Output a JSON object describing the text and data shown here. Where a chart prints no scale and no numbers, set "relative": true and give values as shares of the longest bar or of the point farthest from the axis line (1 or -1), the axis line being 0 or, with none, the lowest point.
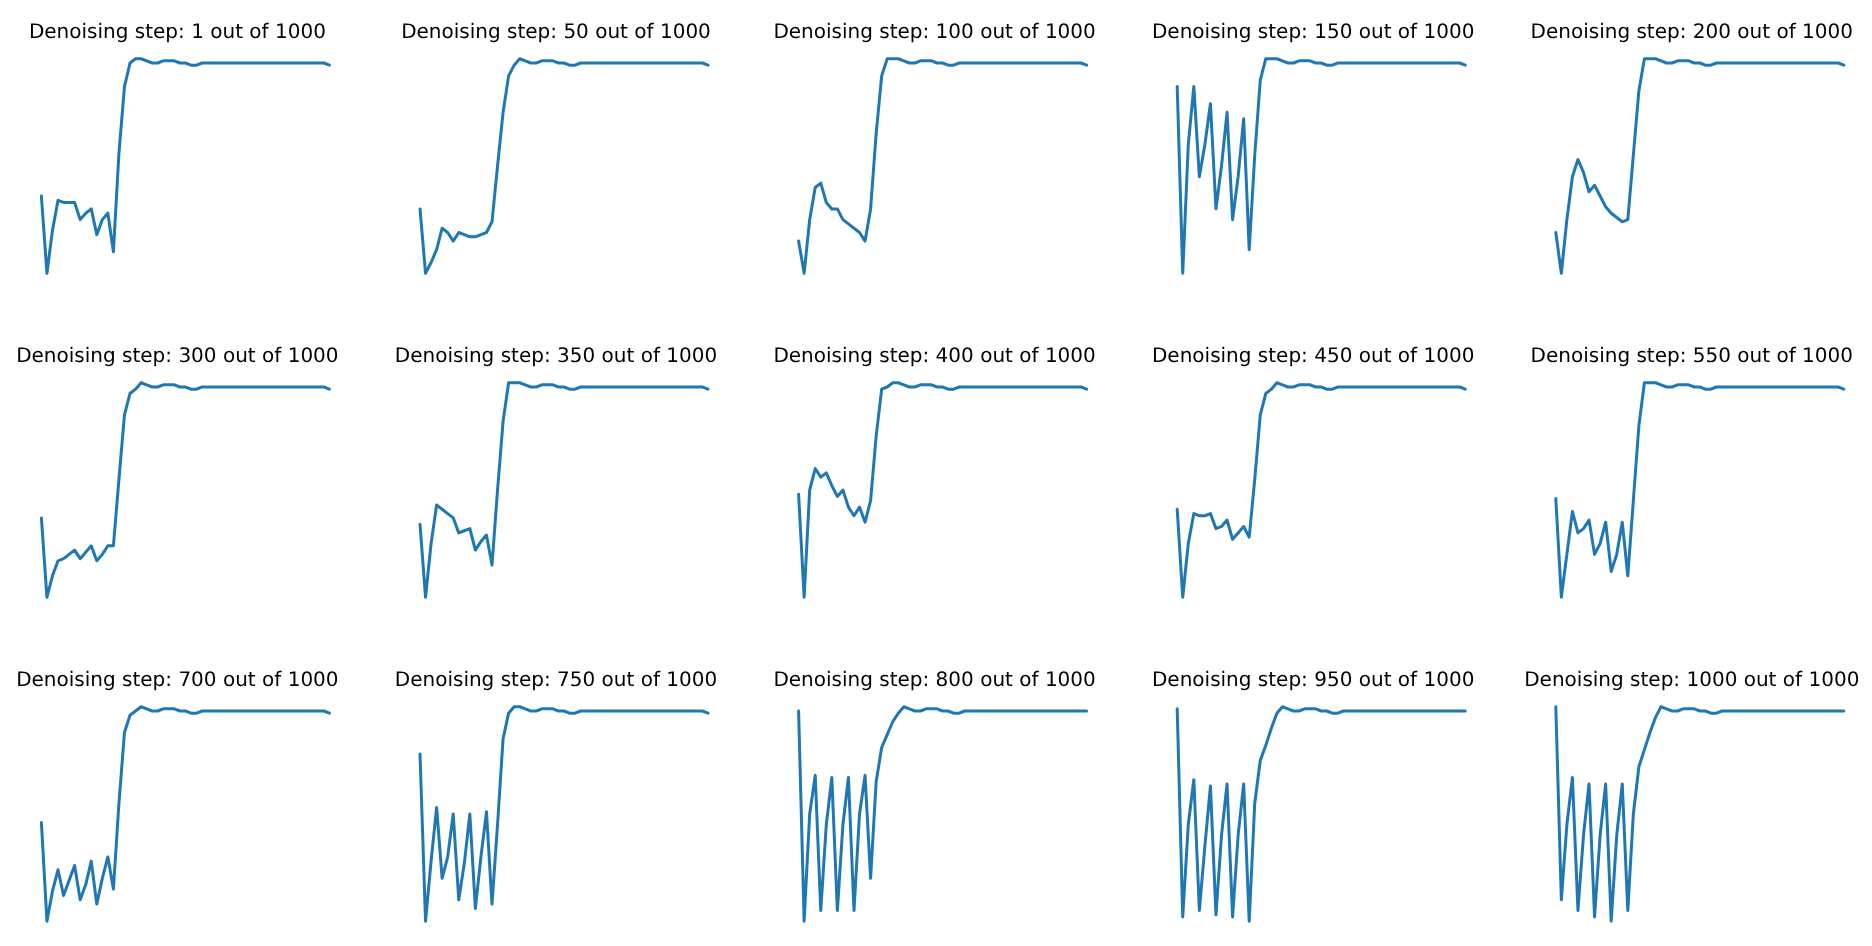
{
  "chart_data": [
    {
      "type": "line",
      "title": "Denoising step: 1 out of 1000",
      "relative": true,
      "color": "#1f77b4",
      "categories": [
        null,
        null,
        null,
        null,
        null,
        null,
        null,
        null,
        null,
        null,
        null,
        null,
        null,
        null,
        null,
        null,
        null,
        null,
        null,
        null,
        null,
        null,
        null,
        null,
        null,
        null,
        null,
        null,
        null,
        null,
        null,
        null,
        null,
        null,
        null,
        null,
        null,
        null,
        null,
        null,
        null,
        null,
        null,
        null,
        null,
        null,
        null,
        null,
        null,
        null,
        null,
        null,
        null
      ],
      "values": [
        0.36,
        0,
        0.2,
        0.34,
        0.33,
        0.33,
        0.33,
        0.25,
        0.28,
        0.3,
        0.18,
        0.25,
        0.28,
        0.1,
        0.56,
        0.87,
        0.98,
        1,
        1,
        0.99,
        0.98,
        0.98,
        0.99,
        0.99,
        0.99,
        0.98,
        0.98,
        0.97,
        0.97,
        0.98,
        0.98,
        0.98,
        0.98,
        0.98,
        0.98,
        0.98,
        0.98,
        0.98,
        0.98,
        0.98,
        0.98,
        0.98,
        0.98,
        0.98,
        0.98,
        0.98,
        0.98,
        0.98,
        0.98,
        0.98,
        0.98,
        0.98,
        0.97
      ]
    },
    {
      "type": "line",
      "title": "Denoising step: 50 out of 1000",
      "relative": true,
      "color": "#1f77b4",
      "categories": [
        null,
        null,
        null,
        null,
        null,
        null,
        null,
        null,
        null,
        null,
        null,
        null,
        null,
        null,
        null,
        null,
        null,
        null,
        null,
        null,
        null,
        null,
        null,
        null,
        null,
        null,
        null,
        null,
        null,
        null,
        null,
        null,
        null,
        null,
        null,
        null,
        null,
        null,
        null,
        null,
        null,
        null,
        null,
        null,
        null,
        null,
        null,
        null,
        null,
        null,
        null,
        null,
        null
      ],
      "values": [
        0.3,
        0,
        0.05,
        0.11,
        0.21,
        0.19,
        0.15,
        0.19,
        0.18,
        0.17,
        0.17,
        0.18,
        0.19,
        0.24,
        0.5,
        0.75,
        0.92,
        0.97,
        1,
        0.99,
        0.98,
        0.98,
        0.99,
        0.99,
        0.99,
        0.98,
        0.98,
        0.97,
        0.97,
        0.98,
        0.98,
        0.98,
        0.98,
        0.98,
        0.98,
        0.98,
        0.98,
        0.98,
        0.98,
        0.98,
        0.98,
        0.98,
        0.98,
        0.98,
        0.98,
        0.98,
        0.98,
        0.98,
        0.98,
        0.98,
        0.98,
        0.98,
        0.97
      ]
    },
    {
      "type": "line",
      "title": "Denoising step: 100 out of 1000",
      "relative": true,
      "color": "#1f77b4",
      "categories": [
        null,
        null,
        null,
        null,
        null,
        null,
        null,
        null,
        null,
        null,
        null,
        null,
        null,
        null,
        null,
        null,
        null,
        null,
        null,
        null,
        null,
        null,
        null,
        null,
        null,
        null,
        null,
        null,
        null,
        null,
        null,
        null,
        null,
        null,
        null,
        null,
        null,
        null,
        null,
        null,
        null,
        null,
        null,
        null,
        null,
        null,
        null,
        null,
        null,
        null,
        null,
        null,
        null
      ],
      "values": [
        0.15,
        0,
        0.25,
        0.4,
        0.42,
        0.33,
        0.3,
        0.3,
        0.25,
        0.23,
        0.21,
        0.19,
        0.15,
        0.3,
        0.65,
        0.92,
        1,
        1,
        1,
        0.99,
        0.98,
        0.98,
        0.99,
        0.99,
        0.99,
        0.98,
        0.98,
        0.97,
        0.97,
        0.98,
        0.98,
        0.98,
        0.98,
        0.98,
        0.98,
        0.98,
        0.98,
        0.98,
        0.98,
        0.98,
        0.98,
        0.98,
        0.98,
        0.98,
        0.98,
        0.98,
        0.98,
        0.98,
        0.98,
        0.98,
        0.98,
        0.98,
        0.97
      ]
    },
    {
      "type": "line",
      "title": "Denoising step: 150 out of 1000",
      "relative": true,
      "color": "#1f77b4",
      "categories": [
        null,
        null,
        null,
        null,
        null,
        null,
        null,
        null,
        null,
        null,
        null,
        null,
        null,
        null,
        null,
        null,
        null,
        null,
        null,
        null,
        null,
        null,
        null,
        null,
        null,
        null,
        null,
        null,
        null,
        null,
        null,
        null,
        null,
        null,
        null,
        null,
        null,
        null,
        null,
        null,
        null,
        null,
        null,
        null,
        null,
        null,
        null,
        null,
        null,
        null,
        null,
        null,
        null
      ],
      "values": [
        0.87,
        0,
        0.6,
        0.87,
        0.45,
        0.6,
        0.79,
        0.3,
        0.5,
        0.75,
        0.25,
        0.45,
        0.72,
        0.11,
        0.55,
        0.9,
        1,
        1,
        1,
        0.99,
        0.98,
        0.98,
        0.99,
        0.99,
        0.99,
        0.98,
        0.98,
        0.97,
        0.97,
        0.98,
        0.98,
        0.98,
        0.98,
        0.98,
        0.98,
        0.98,
        0.98,
        0.98,
        0.98,
        0.98,
        0.98,
        0.98,
        0.98,
        0.98,
        0.98,
        0.98,
        0.98,
        0.98,
        0.98,
        0.98,
        0.98,
        0.98,
        0.97
      ]
    },
    {
      "type": "line",
      "title": "Denoising step: 200 out of 1000",
      "relative": true,
      "color": "#1f77b4",
      "categories": [
        null,
        null,
        null,
        null,
        null,
        null,
        null,
        null,
        null,
        null,
        null,
        null,
        null,
        null,
        null,
        null,
        null,
        null,
        null,
        null,
        null,
        null,
        null,
        null,
        null,
        null,
        null,
        null,
        null,
        null,
        null,
        null,
        null,
        null,
        null,
        null,
        null,
        null,
        null,
        null,
        null,
        null,
        null,
        null,
        null,
        null,
        null,
        null,
        null,
        null,
        null,
        null,
        null
      ],
      "values": [
        0.19,
        0,
        0.25,
        0.45,
        0.53,
        0.47,
        0.38,
        0.41,
        0.36,
        0.31,
        0.28,
        0.26,
        0.24,
        0.25,
        0.55,
        0.85,
        1,
        1,
        1,
        0.99,
        0.98,
        0.98,
        0.99,
        0.99,
        0.99,
        0.98,
        0.98,
        0.97,
        0.97,
        0.98,
        0.98,
        0.98,
        0.98,
        0.98,
        0.98,
        0.98,
        0.98,
        0.98,
        0.98,
        0.98,
        0.98,
        0.98,
        0.98,
        0.98,
        0.98,
        0.98,
        0.98,
        0.98,
        0.98,
        0.98,
        0.98,
        0.98,
        0.97
      ]
    },
    {
      "type": "line",
      "title": "Denoising step: 300 out of 1000",
      "relative": true,
      "color": "#1f77b4",
      "categories": [
        null,
        null,
        null,
        null,
        null,
        null,
        null,
        null,
        null,
        null,
        null,
        null,
        null,
        null,
        null,
        null,
        null,
        null,
        null,
        null,
        null,
        null,
        null,
        null,
        null,
        null,
        null,
        null,
        null,
        null,
        null,
        null,
        null,
        null,
        null,
        null,
        null,
        null,
        null,
        null,
        null,
        null,
        null,
        null,
        null,
        null,
        null,
        null,
        null,
        null,
        null,
        null,
        null
      ],
      "values": [
        0.37,
        0,
        0.1,
        0.17,
        0.18,
        0.2,
        0.22,
        0.18,
        0.21,
        0.24,
        0.17,
        0.2,
        0.24,
        0.24,
        0.55,
        0.85,
        0.95,
        0.97,
        1,
        0.99,
        0.98,
        0.98,
        0.99,
        0.99,
        0.99,
        0.98,
        0.98,
        0.97,
        0.97,
        0.98,
        0.98,
        0.98,
        0.98,
        0.98,
        0.98,
        0.98,
        0.98,
        0.98,
        0.98,
        0.98,
        0.98,
        0.98,
        0.98,
        0.98,
        0.98,
        0.98,
        0.98,
        0.98,
        0.98,
        0.98,
        0.98,
        0.98,
        0.97
      ]
    },
    {
      "type": "line",
      "title": "Denoising step: 350 out of 1000",
      "relative": true,
      "color": "#1f77b4",
      "categories": [
        null,
        null,
        null,
        null,
        null,
        null,
        null,
        null,
        null,
        null,
        null,
        null,
        null,
        null,
        null,
        null,
        null,
        null,
        null,
        null,
        null,
        null,
        null,
        null,
        null,
        null,
        null,
        null,
        null,
        null,
        null,
        null,
        null,
        null,
        null,
        null,
        null,
        null,
        null,
        null,
        null,
        null,
        null,
        null,
        null,
        null,
        null,
        null,
        null,
        null,
        null,
        null,
        null
      ],
      "values": [
        0.34,
        0,
        0.25,
        0.43,
        0.41,
        0.39,
        0.37,
        0.3,
        0.31,
        0.32,
        0.22,
        0.26,
        0.29,
        0.15,
        0.5,
        0.82,
        1,
        1,
        1,
        0.99,
        0.98,
        0.98,
        0.99,
        0.99,
        0.99,
        0.98,
        0.98,
        0.97,
        0.97,
        0.98,
        0.98,
        0.98,
        0.98,
        0.98,
        0.98,
        0.98,
        0.98,
        0.98,
        0.98,
        0.98,
        0.98,
        0.98,
        0.98,
        0.98,
        0.98,
        0.98,
        0.98,
        0.98,
        0.98,
        0.98,
        0.98,
        0.98,
        0.97
      ]
    },
    {
      "type": "line",
      "title": "Denoising step: 400 out of 1000",
      "relative": true,
      "color": "#1f77b4",
      "categories": [
        null,
        null,
        null,
        null,
        null,
        null,
        null,
        null,
        null,
        null,
        null,
        null,
        null,
        null,
        null,
        null,
        null,
        null,
        null,
        null,
        null,
        null,
        null,
        null,
        null,
        null,
        null,
        null,
        null,
        null,
        null,
        null,
        null,
        null,
        null,
        null,
        null,
        null,
        null,
        null,
        null,
        null,
        null,
        null,
        null,
        null,
        null,
        null,
        null,
        null,
        null,
        null,
        null
      ],
      "values": [
        0.48,
        0,
        0.5,
        0.6,
        0.56,
        0.58,
        0.52,
        0.47,
        0.5,
        0.42,
        0.38,
        0.42,
        0.35,
        0.45,
        0.75,
        0.97,
        0.98,
        1,
        1,
        0.99,
        0.98,
        0.98,
        0.99,
        0.99,
        0.99,
        0.98,
        0.98,
        0.97,
        0.97,
        0.98,
        0.98,
        0.98,
        0.98,
        0.98,
        0.98,
        0.98,
        0.98,
        0.98,
        0.98,
        0.98,
        0.98,
        0.98,
        0.98,
        0.98,
        0.98,
        0.98,
        0.98,
        0.98,
        0.98,
        0.98,
        0.98,
        0.98,
        0.97
      ]
    },
    {
      "type": "line",
      "title": "Denoising step: 450 out of 1000",
      "relative": true,
      "color": "#1f77b4",
      "categories": [
        null,
        null,
        null,
        null,
        null,
        null,
        null,
        null,
        null,
        null,
        null,
        null,
        null,
        null,
        null,
        null,
        null,
        null,
        null,
        null,
        null,
        null,
        null,
        null,
        null,
        null,
        null,
        null,
        null,
        null,
        null,
        null,
        null,
        null,
        null,
        null,
        null,
        null,
        null,
        null,
        null,
        null,
        null,
        null,
        null,
        null,
        null,
        null,
        null,
        null,
        null,
        null,
        null
      ],
      "values": [
        0.41,
        0,
        0.25,
        0.39,
        0.38,
        0.38,
        0.39,
        0.32,
        0.33,
        0.36,
        0.27,
        0.3,
        0.33,
        0.28,
        0.55,
        0.85,
        0.95,
        0.97,
        1,
        0.99,
        0.98,
        0.98,
        0.99,
        0.99,
        0.99,
        0.98,
        0.98,
        0.97,
        0.97,
        0.98,
        0.98,
        0.98,
        0.98,
        0.98,
        0.98,
        0.98,
        0.98,
        0.98,
        0.98,
        0.98,
        0.98,
        0.98,
        0.98,
        0.98,
        0.98,
        0.98,
        0.98,
        0.98,
        0.98,
        0.98,
        0.98,
        0.98,
        0.97
      ]
    },
    {
      "type": "line",
      "title": "Denoising step: 550 out of 1000",
      "relative": true,
      "color": "#1f77b4",
      "categories": [
        null,
        null,
        null,
        null,
        null,
        null,
        null,
        null,
        null,
        null,
        null,
        null,
        null,
        null,
        null,
        null,
        null,
        null,
        null,
        null,
        null,
        null,
        null,
        null,
        null,
        null,
        null,
        null,
        null,
        null,
        null,
        null,
        null,
        null,
        null,
        null,
        null,
        null,
        null,
        null,
        null,
        null,
        null,
        null,
        null,
        null,
        null,
        null,
        null,
        null,
        null,
        null,
        null
      ],
      "values": [
        0.46,
        0,
        0.2,
        0.4,
        0.3,
        0.32,
        0.36,
        0.2,
        0.25,
        0.35,
        0.12,
        0.2,
        0.35,
        0.1,
        0.45,
        0.8,
        1,
        1,
        1,
        0.99,
        0.98,
        0.98,
        0.99,
        0.99,
        0.99,
        0.98,
        0.98,
        0.97,
        0.97,
        0.98,
        0.98,
        0.98,
        0.98,
        0.98,
        0.98,
        0.98,
        0.98,
        0.98,
        0.98,
        0.98,
        0.98,
        0.98,
        0.98,
        0.98,
        0.98,
        0.98,
        0.98,
        0.98,
        0.98,
        0.98,
        0.98,
        0.98,
        0.97
      ]
    },
    {
      "type": "line",
      "title": "Denoising step: 700 out of 1000",
      "relative": true,
      "color": "#1f77b4",
      "categories": [
        null,
        null,
        null,
        null,
        null,
        null,
        null,
        null,
        null,
        null,
        null,
        null,
        null,
        null,
        null,
        null,
        null,
        null,
        null,
        null,
        null,
        null,
        null,
        null,
        null,
        null,
        null,
        null,
        null,
        null,
        null,
        null,
        null,
        null,
        null,
        null,
        null,
        null,
        null,
        null,
        null,
        null,
        null,
        null,
        null,
        null,
        null,
        null,
        null,
        null,
        null,
        null,
        null
      ],
      "values": [
        0.46,
        0,
        0.14,
        0.24,
        0.12,
        0.19,
        0.26,
        0.1,
        0.17,
        0.28,
        0.08,
        0.2,
        0.3,
        0.15,
        0.55,
        0.88,
        0.96,
        0.98,
        1,
        0.99,
        0.98,
        0.98,
        0.99,
        0.99,
        0.99,
        0.98,
        0.98,
        0.97,
        0.97,
        0.98,
        0.98,
        0.98,
        0.98,
        0.98,
        0.98,
        0.98,
        0.98,
        0.98,
        0.98,
        0.98,
        0.98,
        0.98,
        0.98,
        0.98,
        0.98,
        0.98,
        0.98,
        0.98,
        0.98,
        0.98,
        0.98,
        0.98,
        0.97
      ]
    },
    {
      "type": "line",
      "title": "Denoising step: 750 out of 1000",
      "relative": true,
      "color": "#1f77b4",
      "categories": [
        null,
        null,
        null,
        null,
        null,
        null,
        null,
        null,
        null,
        null,
        null,
        null,
        null,
        null,
        null,
        null,
        null,
        null,
        null,
        null,
        null,
        null,
        null,
        null,
        null,
        null,
        null,
        null,
        null,
        null,
        null,
        null,
        null,
        null,
        null,
        null,
        null,
        null,
        null,
        null,
        null,
        null,
        null,
        null,
        null,
        null,
        null,
        null,
        null,
        null,
        null,
        null,
        null
      ],
      "values": [
        0.78,
        0,
        0.28,
        0.53,
        0.2,
        0.3,
        0.5,
        0.1,
        0.27,
        0.5,
        0.06,
        0.3,
        0.51,
        0.08,
        0.45,
        0.85,
        0.97,
        1,
        1,
        0.99,
        0.98,
        0.98,
        0.99,
        0.99,
        0.99,
        0.98,
        0.98,
        0.97,
        0.97,
        0.98,
        0.98,
        0.98,
        0.98,
        0.98,
        0.98,
        0.98,
        0.98,
        0.98,
        0.98,
        0.98,
        0.98,
        0.98,
        0.98,
        0.98,
        0.98,
        0.98,
        0.98,
        0.98,
        0.98,
        0.98,
        0.98,
        0.98,
        0.97
      ]
    },
    {
      "type": "line",
      "title": "Denoising step: 800 out of 1000",
      "relative": true,
      "color": "#1f77b4",
      "categories": [
        null,
        null,
        null,
        null,
        null,
        null,
        null,
        null,
        null,
        null,
        null,
        null,
        null,
        null,
        null,
        null,
        null,
        null,
        null,
        null,
        null,
        null,
        null,
        null,
        null,
        null,
        null,
        null,
        null,
        null,
        null,
        null,
        null,
        null,
        null,
        null,
        null,
        null,
        null,
        null,
        null,
        null,
        null,
        null,
        null,
        null,
        null,
        null,
        null,
        null,
        null,
        null,
        null
      ],
      "values": [
        0.98,
        0,
        0.5,
        0.68,
        0.05,
        0.45,
        0.67,
        0.05,
        0.45,
        0.67,
        0.05,
        0.5,
        0.68,
        0.2,
        0.65,
        0.81,
        0.87,
        0.93,
        0.97,
        1,
        0.99,
        0.98,
        0.98,
        0.99,
        0.99,
        0.99,
        0.98,
        0.98,
        0.97,
        0.97,
        0.98,
        0.98,
        0.98,
        0.98,
        0.98,
        0.98,
        0.98,
        0.98,
        0.98,
        0.98,
        0.98,
        0.98,
        0.98,
        0.98,
        0.98,
        0.98,
        0.98,
        0.98,
        0.98,
        0.98,
        0.98,
        0.98,
        0.98
      ]
    },
    {
      "type": "line",
      "title": "Denoising step: 950 out of 1000",
      "relative": true,
      "color": "#1f77b4",
      "categories": [
        null,
        null,
        null,
        null,
        null,
        null,
        null,
        null,
        null,
        null,
        null,
        null,
        null,
        null,
        null,
        null,
        null,
        null,
        null,
        null,
        null,
        null,
        null,
        null,
        null,
        null,
        null,
        null,
        null,
        null,
        null,
        null,
        null,
        null,
        null,
        null,
        null,
        null,
        null,
        null,
        null,
        null,
        null,
        null,
        null,
        null,
        null,
        null,
        null,
        null,
        null,
        null,
        null
      ],
      "values": [
        0.99,
        0.02,
        0.45,
        0.66,
        0.05,
        0.35,
        0.63,
        0.03,
        0.4,
        0.64,
        0.02,
        0.4,
        0.64,
        0,
        0.55,
        0.75,
        0.82,
        0.9,
        0.97,
        1,
        0.99,
        0.98,
        0.98,
        0.99,
        0.99,
        0.99,
        0.98,
        0.98,
        0.97,
        0.97,
        0.98,
        0.98,
        0.98,
        0.98,
        0.98,
        0.98,
        0.98,
        0.98,
        0.98,
        0.98,
        0.98,
        0.98,
        0.98,
        0.98,
        0.98,
        0.98,
        0.98,
        0.98,
        0.98,
        0.98,
        0.98,
        0.98,
        0.98
      ]
    },
    {
      "type": "line",
      "title": "Denoising step: 1000 out of 1000",
      "relative": true,
      "color": "#1f77b4",
      "categories": [
        null,
        null,
        null,
        null,
        null,
        null,
        null,
        null,
        null,
        null,
        null,
        null,
        null,
        null,
        null,
        null,
        null,
        null,
        null,
        null,
        null,
        null,
        null,
        null,
        null,
        null,
        null,
        null,
        null,
        null,
        null,
        null,
        null,
        null,
        null,
        null,
        null,
        null,
        null,
        null,
        null,
        null,
        null,
        null,
        null,
        null,
        null,
        null,
        null,
        null,
        null,
        null,
        null
      ],
      "values": [
        1,
        0.1,
        0.45,
        0.67,
        0.05,
        0.4,
        0.64,
        0.02,
        0.4,
        0.64,
        0,
        0.4,
        0.64,
        0.05,
        0.5,
        0.72,
        0.8,
        0.88,
        0.95,
        1,
        0.99,
        0.98,
        0.98,
        0.99,
        0.99,
        0.99,
        0.98,
        0.98,
        0.97,
        0.97,
        0.98,
        0.98,
        0.98,
        0.98,
        0.98,
        0.98,
        0.98,
        0.98,
        0.98,
        0.98,
        0.98,
        0.98,
        0.98,
        0.98,
        0.98,
        0.98,
        0.98,
        0.98,
        0.98,
        0.98,
        0.98,
        0.98,
        0.98
      ]
    }
  ]
}
